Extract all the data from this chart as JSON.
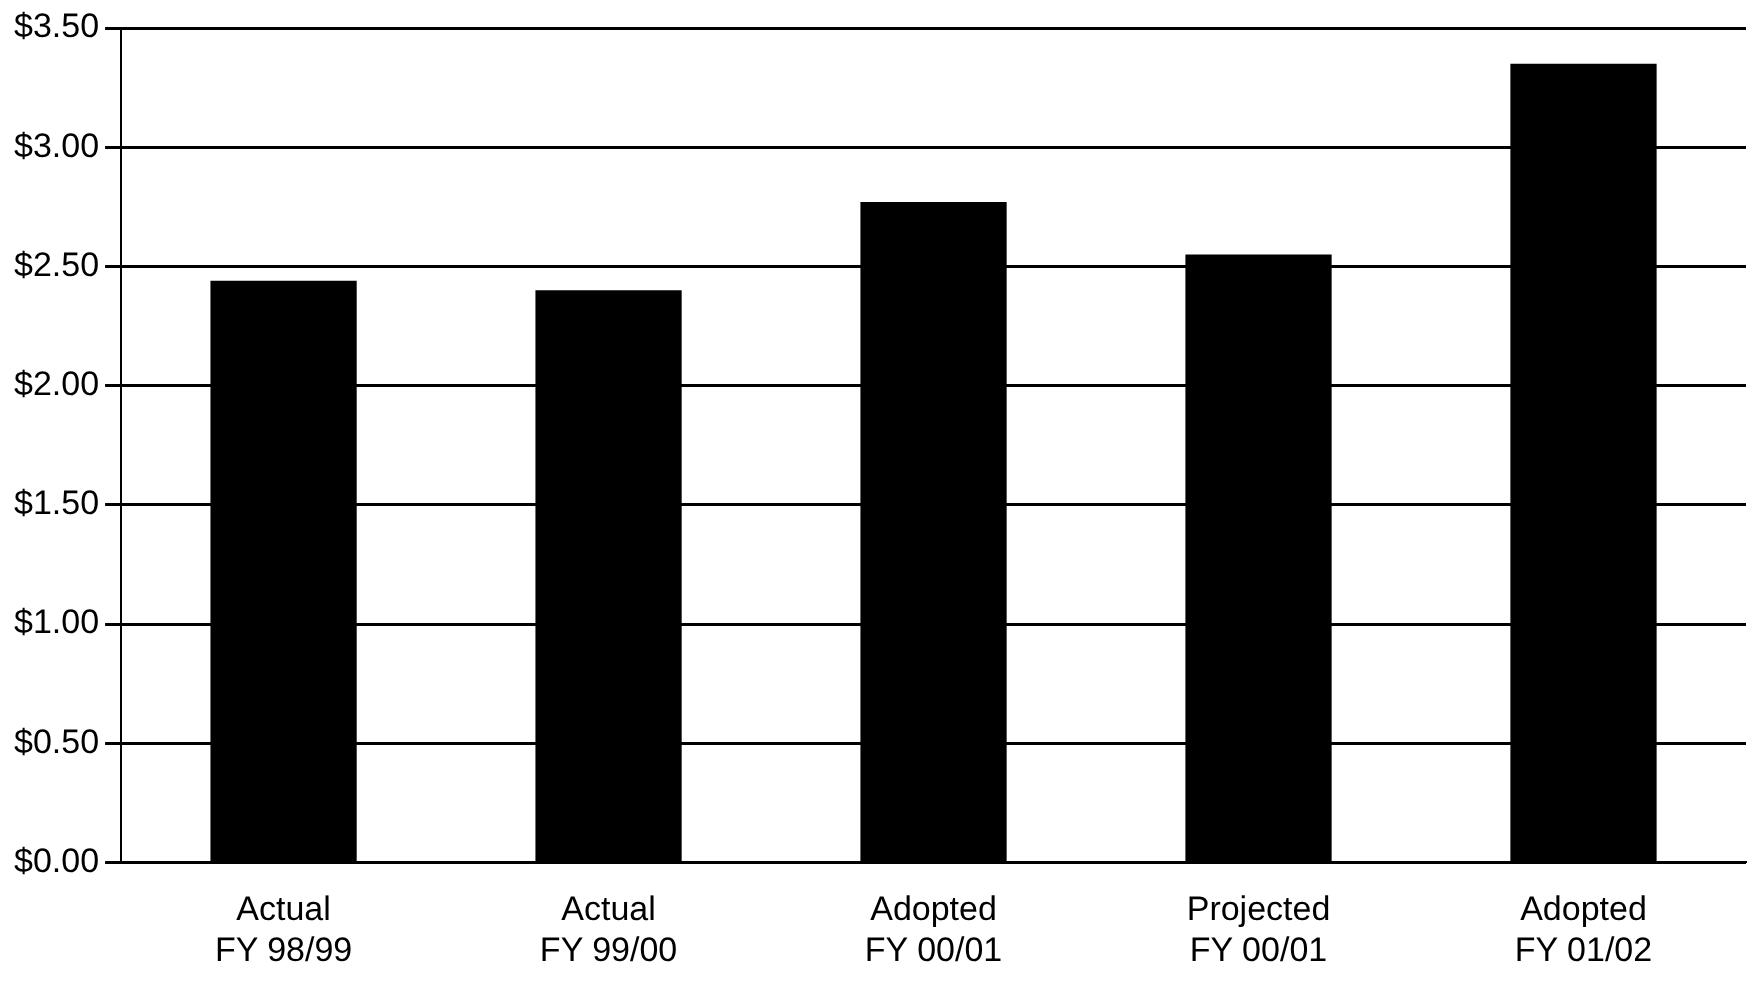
{
  "chart_data": {
    "type": "bar",
    "categories": [
      "Actual\nFY 98/99",
      "Actual\nFY 99/00",
      "Adopted\nFY 00/01",
      "Projected\nFY 00/01",
      "Adopted\nFY 01/02"
    ],
    "values": [
      2.44,
      2.4,
      2.77,
      2.55,
      3.35
    ],
    "color": "#000000",
    "ylim": [
      0,
      3.5
    ],
    "yticks": [
      {
        "value": 0,
        "label": "$0.00"
      },
      {
        "value": 0.5,
        "label": "$0.50"
      },
      {
        "value": 1,
        "label": "$1.00"
      },
      {
        "value": 1.5,
        "label": "$1.50"
      },
      {
        "value": 2,
        "label": "$2.00"
      },
      {
        "value": 2.5,
        "label": "$2.50"
      },
      {
        "value": 3,
        "label": "$3.00"
      },
      {
        "value": 3.5,
        "label": "$3.50"
      }
    ],
    "grid": "y"
  }
}
